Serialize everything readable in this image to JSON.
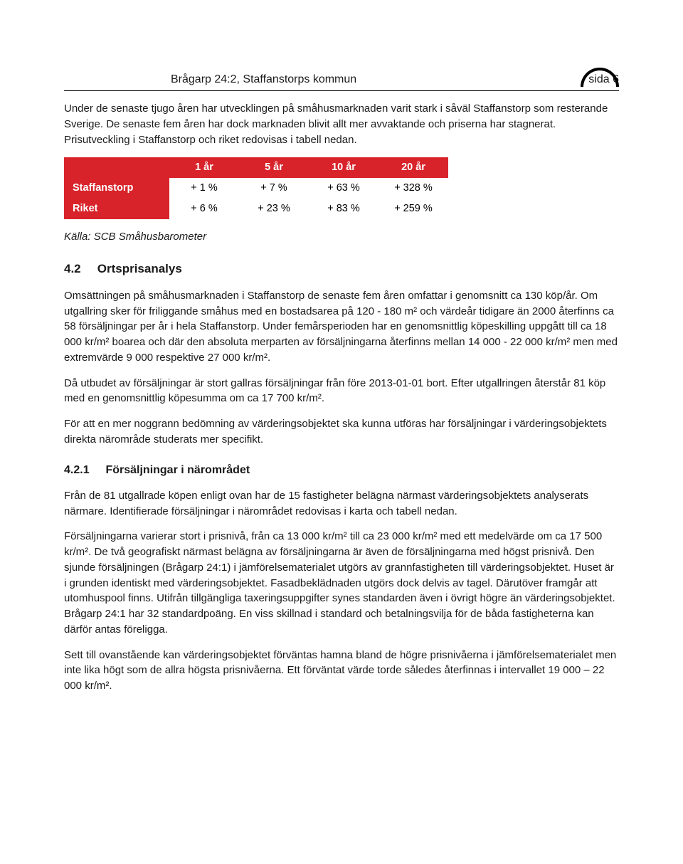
{
  "header": {
    "title": "Brågarp 24:2, Staffanstorps kommun",
    "page": "sida 6"
  },
  "intro_p1": "Under de senaste tjugo åren har utvecklingen på småhusmarknaden varit stark i såväl Staffanstorp som resterande Sverige. De senaste fem åren har dock marknaden blivit allt mer avvaktande och priserna har stagnerat. Prisutveckling i Staffanstorp och riket redovisas i tabell nedan.",
  "table": {
    "columns": [
      "1 år",
      "5 år",
      "10 år",
      "20 år"
    ],
    "rows": [
      {
        "label": "Staffanstorp",
        "values": [
          "+ 1 %",
          "+ 7 %",
          "+ 63 %",
          "+ 328 %"
        ]
      },
      {
        "label": "Riket",
        "values": [
          "+ 6 %",
          "+ 23 %",
          "+ 83 %",
          "+ 259 %"
        ]
      }
    ],
    "header_bg": "#d8232a",
    "header_fg": "#ffffff",
    "cell_bg": "#ffffff",
    "cell_fg": "#000000"
  },
  "source_line": "Källa: SCB Småhusbarometer",
  "section_4_2": {
    "num": "4.2",
    "title": "Ortsprisanalys",
    "p1": "Omsättningen på småhusmarknaden i Staffanstorp de senaste fem åren omfattar i genomsnitt ca 130 köp/år. Om utgallring sker för friliggande småhus med en bostadsarea på 120 - 180 m² och värdeår tidigare än 2000 återfinns ca 58 försäljningar per år i hela Staffanstorp. Under femårsperioden har en genomsnittlig köpeskilling uppgått till ca 18 000 kr/m² boarea och där den absoluta merparten av försäljningarna återfinns mellan 14 000 - 22 000 kr/m² men med extremvärde 9 000 respektive 27 000 kr/m².",
    "p2": "Då utbudet av försäljningar är stort gallras försäljningar från före 2013-01-01 bort. Efter utgallringen återstår 81 köp med en genomsnittlig köpesumma om ca 17 700 kr/m².",
    "p3": "För att en mer noggrann bedömning av värderingsobjektet ska kunna utföras har försäljningar i värderingsobjektets direkta närområde studerats mer specifikt."
  },
  "section_4_2_1": {
    "num": "4.2.1",
    "title": "Försäljningar i närområdet",
    "p1": "Från de 81 utgallrade köpen enligt ovan har de 15 fastigheter belägna närmast värderingsobjektets analyserats närmare. Identifierade försäljningar i närområdet redovisas i karta och tabell nedan.",
    "p2": "Försäljningarna varierar stort i prisnivå, från ca 13 000 kr/m² till ca 23 000 kr/m² med ett medelvärde om ca 17 500 kr/m². De två geografiskt närmast belägna av försäljningarna är även de försäljningarna med högst prisnivå. Den sjunde försäljningen (Brågarp 24:1) i jämförelsematerialet utgörs av grannfastigheten till värderingsobjektet. Huset är i grunden identiskt med värderingsobjektet. Fasadbeklädnaden utgörs dock delvis av tagel. Därutöver framgår att utomhuspool finns. Utifrån tillgängliga taxeringsuppgifter synes standarden även i övrigt högre än värderingsobjektet. Brågarp 24:1 har 32 standardpoäng. En viss skillnad i standard och betalningsvilja för de båda fastigheterna kan därför antas föreligga.",
    "p3": "Sett till ovanstående kan värderingsobjektet förväntas hamna bland de högre prisnivåerna i jämförelsematerialet men inte lika högt som de allra högsta prisnivåerna. Ett förväntat värde torde således återfinnas i intervallet 19 000 – 22 000 kr/m²."
  }
}
